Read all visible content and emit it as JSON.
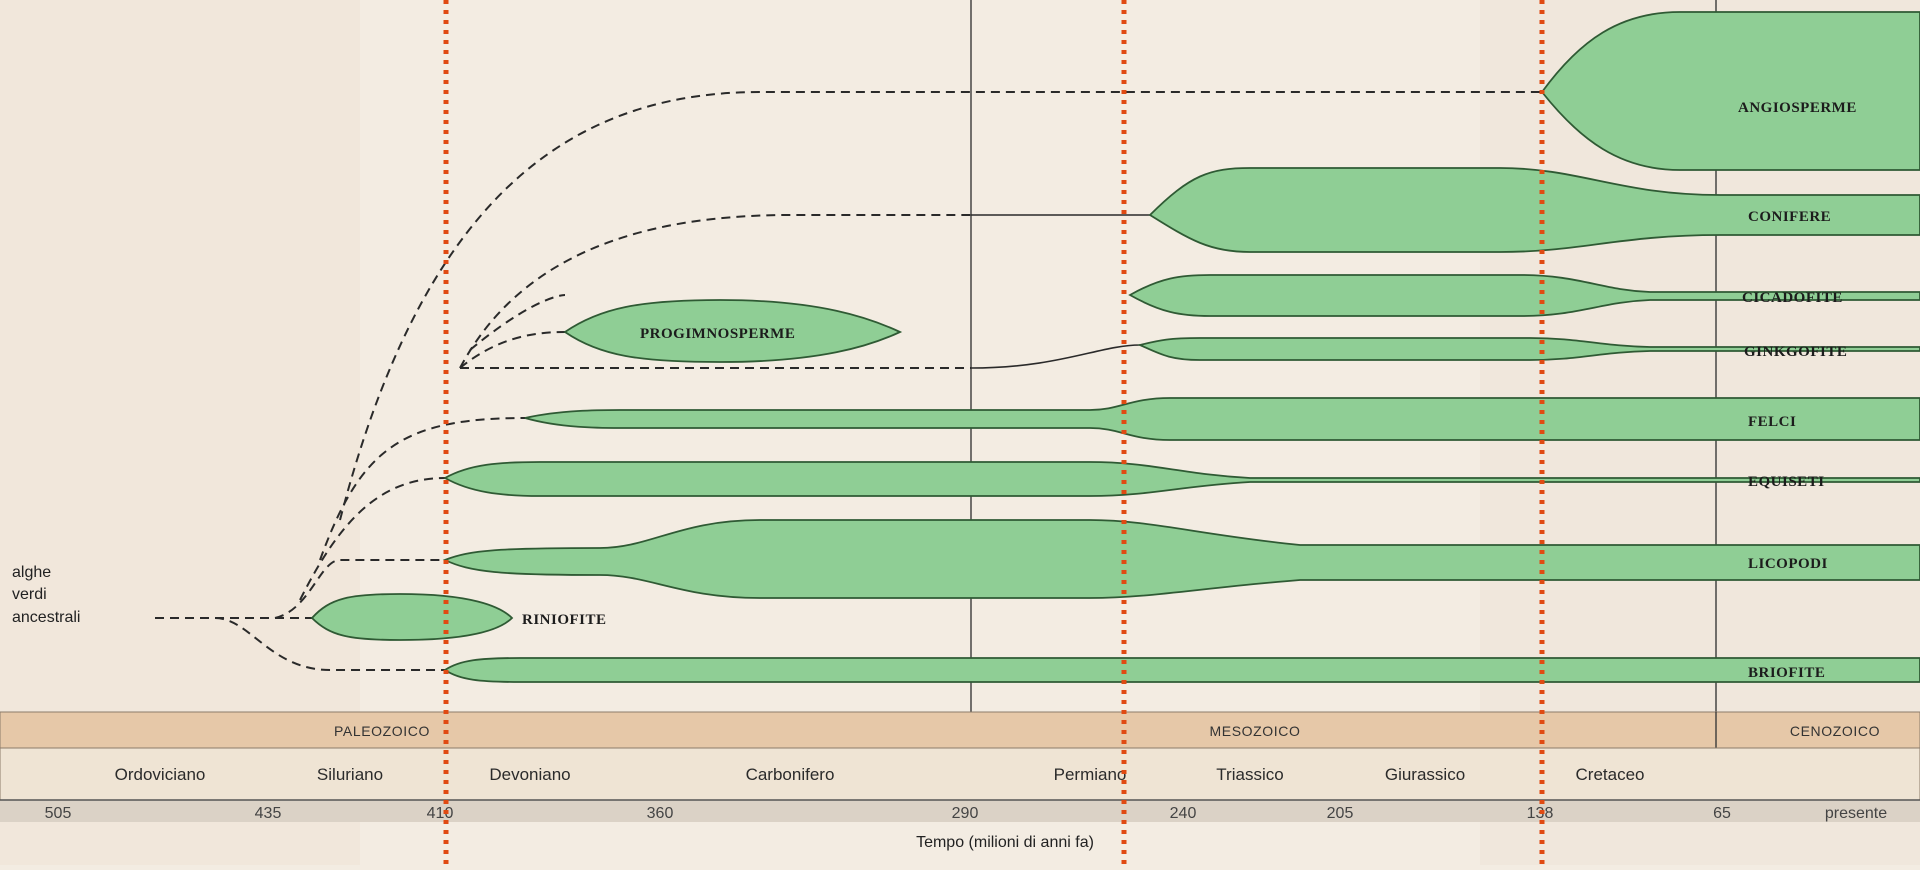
{
  "colors": {
    "background": "#f3ece2",
    "lineage_fill": "#8fce95",
    "lineage_stroke": "#2f5a34",
    "marker_line": "#e04a12",
    "era_band": "#e6c8a8",
    "period_band": "#efe4d4"
  },
  "origin_label": [
    "alghe",
    "verdi",
    "ancestrali"
  ],
  "lineages": [
    {
      "label": "ANGIOSPERME"
    },
    {
      "label": "CONIFERE"
    },
    {
      "label": "CICADOFITE"
    },
    {
      "label": "GINKGOFITE"
    },
    {
      "label": "FELCI"
    },
    {
      "label": "EQUISETI"
    },
    {
      "label": "LICOPODI"
    },
    {
      "label": "BRIOFITE"
    },
    {
      "label": "PROGIMNOSPERME"
    },
    {
      "label": "RINIOFITE"
    }
  ],
  "eras": [
    "PALEOZOICO",
    "MESOZOICO",
    "CENOZOICO"
  ],
  "periods": [
    "Ordoviciano",
    "Siluriano",
    "Devoniano",
    "Carbonifero",
    "Permiano",
    "Triassico",
    "Giurassico",
    "Cretaceo"
  ],
  "ticks": [
    "505",
    "435",
    "410",
    "360",
    "290",
    "240",
    "205",
    "138",
    "65",
    "presente"
  ],
  "axis_title": "Tempo (milioni di anni fa)"
}
